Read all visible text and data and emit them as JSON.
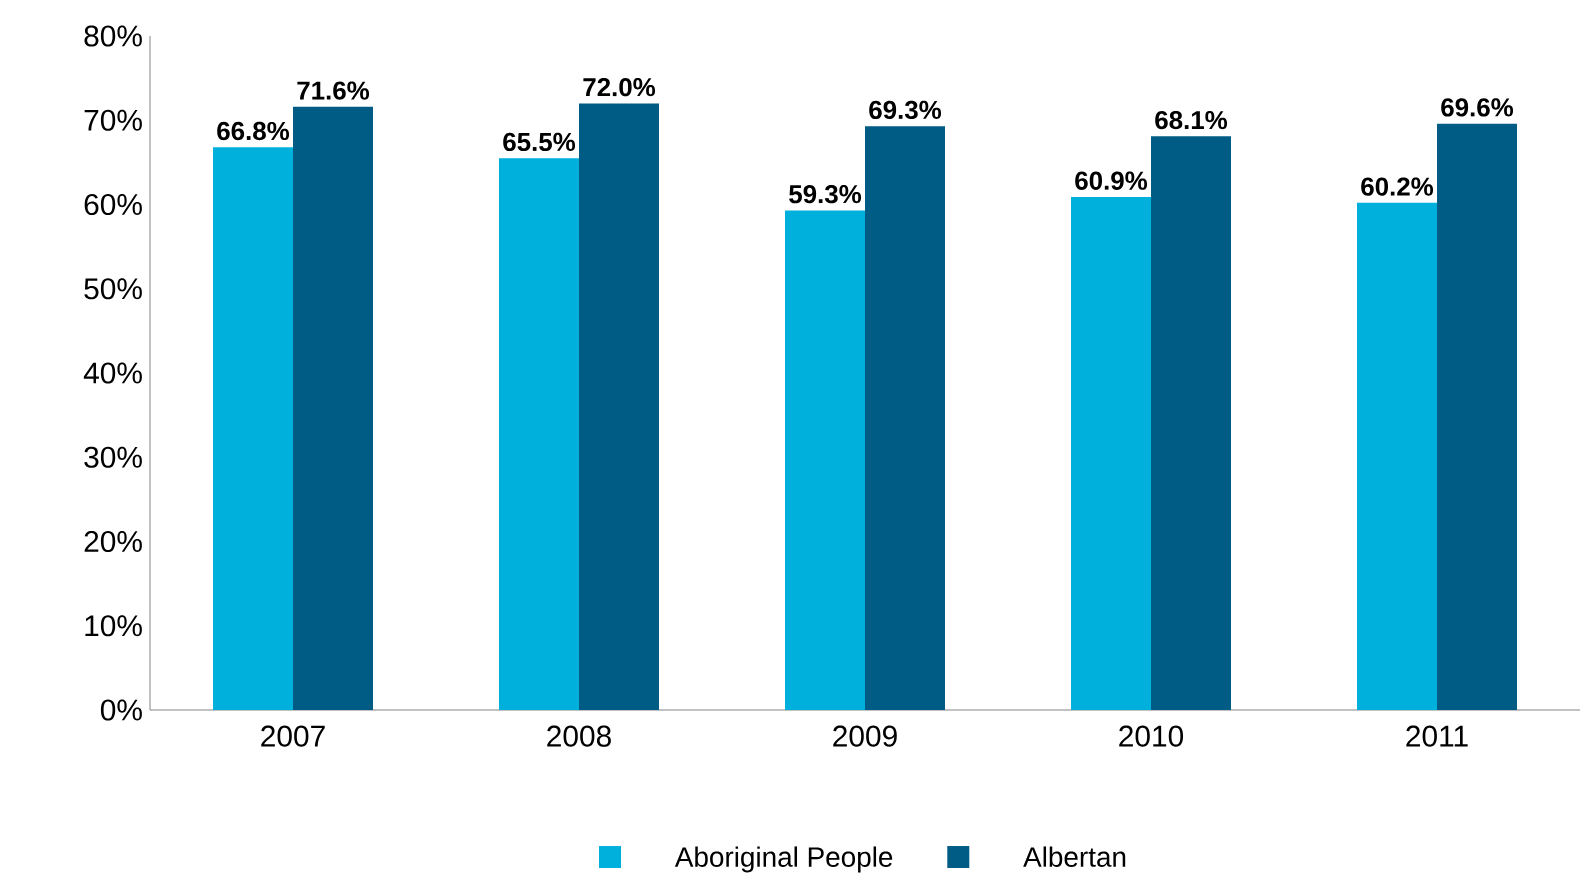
{
  "chart_data": {
    "type": "bar",
    "categories": [
      "2007",
      "2008",
      "2009",
      "2010",
      "2011"
    ],
    "series": [
      {
        "name": "Aboriginal People",
        "color": "#00b0dc",
        "values": [
          66.8,
          65.5,
          59.3,
          60.9,
          60.2
        ],
        "value_labels": [
          "66.8%",
          "65.5%",
          "59.3%",
          "60.9%",
          "60.2%"
        ]
      },
      {
        "name": "Albertan",
        "color": "#005b85",
        "values": [
          71.6,
          72.0,
          69.3,
          68.1,
          69.6
        ],
        "value_labels": [
          "71.6%",
          "72.0%",
          "69.3%",
          "68.1%",
          "69.6%"
        ]
      }
    ],
    "ylim": [
      0,
      80
    ],
    "yticks": [
      {
        "value": 0,
        "label": "0%"
      },
      {
        "value": 10,
        "label": "10%"
      },
      {
        "value": 20,
        "label": "20%"
      },
      {
        "value": 30,
        "label": "30%"
      },
      {
        "value": 40,
        "label": "40%"
      },
      {
        "value": 50,
        "label": "50%"
      },
      {
        "value": 60,
        "label": "60%"
      },
      {
        "value": 70,
        "label": "70%"
      },
      {
        "value": 80,
        "label": "80%"
      }
    ],
    "grid": false,
    "legend": "bottom"
  }
}
